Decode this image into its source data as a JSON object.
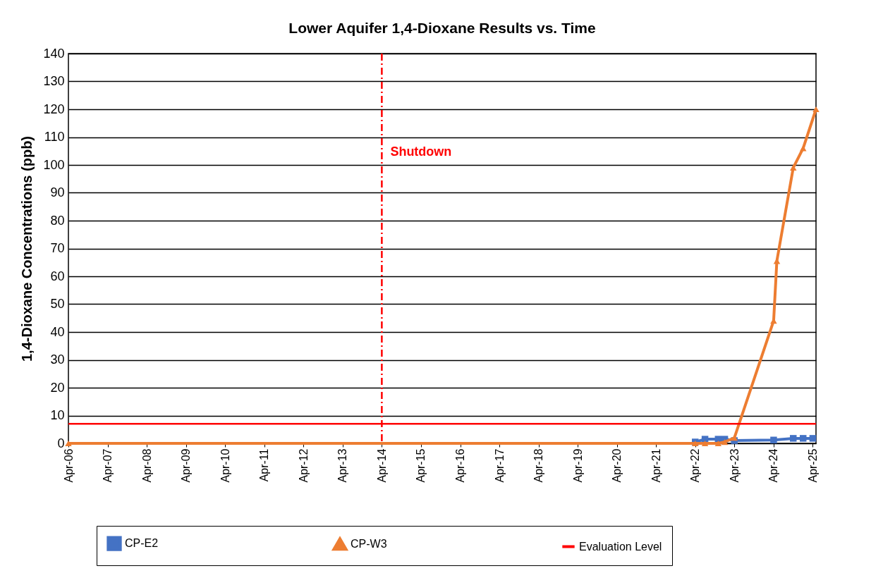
{
  "chart_data": {
    "type": "line",
    "title": "Lower Aquifer 1,4-Dioxane Results vs. Time",
    "ylabel": "1,4-Dioxane Concentrations (ppb)",
    "series": [
      {
        "name": "CP-E2",
        "color": "#4472c4",
        "marker": "square",
        "x": [
          "2022-04",
          "2022-07",
          "2022-11",
          "2023-01",
          "2023-04",
          "2024-04",
          "2024-10",
          "2025-01",
          "2025-04"
        ],
        "values": [
          0.5,
          1.5,
          1.5,
          1.5,
          1,
          1.2,
          1.8,
          1.8,
          1.8
        ]
      },
      {
        "name": "CP-W3",
        "color": "#ed7d31",
        "marker": "triangle",
        "x": [
          "2006-04",
          "2022-04",
          "2022-07",
          "2022-11",
          "2023-01",
          "2023-04",
          "2024-04",
          "2024-05",
          "2024-10",
          "2025-01",
          "2025-05"
        ],
        "values": [
          0,
          0,
          0,
          0,
          0.5,
          2,
          44,
          65.5,
          99,
          106,
          120
        ]
      }
    ],
    "ref_lines": [
      {
        "axis": "x",
        "value": "2014-04",
        "label": "Shutdown",
        "color": "#ff0000",
        "line_style": "dashed"
      },
      {
        "axis": "y",
        "value": 7,
        "label": "Evaluation Level",
        "color": "#ff0000",
        "line_style": "solid"
      }
    ],
    "xlim": [
      "2006-04",
      "2025-05"
    ],
    "xticks": [
      {
        "value": "2006-04",
        "label": "Apr-06"
      },
      {
        "value": "2007-04",
        "label": "Apr-07"
      },
      {
        "value": "2008-04",
        "label": "Apr-08"
      },
      {
        "value": "2009-04",
        "label": "Apr-09"
      },
      {
        "value": "2010-04",
        "label": "Apr-10"
      },
      {
        "value": "2011-04",
        "label": "Apr-11"
      },
      {
        "value": "2012-04",
        "label": "Apr-12"
      },
      {
        "value": "2013-04",
        "label": "Apr-13"
      },
      {
        "value": "2014-04",
        "label": "Apr-14"
      },
      {
        "value": "2015-04",
        "label": "Apr-15"
      },
      {
        "value": "2016-04",
        "label": "Apr-16"
      },
      {
        "value": "2017-04",
        "label": "Apr-17"
      },
      {
        "value": "2018-04",
        "label": "Apr-18"
      },
      {
        "value": "2019-04",
        "label": "Apr-19"
      },
      {
        "value": "2020-04",
        "label": "Apr-20"
      },
      {
        "value": "2021-04",
        "label": "Apr-21"
      },
      {
        "value": "2022-04",
        "label": "Apr-22"
      },
      {
        "value": "2023-04",
        "label": "Apr-23"
      },
      {
        "value": "2024-04",
        "label": "Apr-24"
      },
      {
        "value": "2025-04",
        "label": "Apr-25"
      }
    ],
    "ylim": [
      0,
      140
    ],
    "yticks": [
      0,
      10,
      20,
      30,
      40,
      50,
      60,
      70,
      80,
      90,
      100,
      110,
      120,
      130,
      140
    ],
    "grid": "y",
    "legend": "bottom"
  }
}
